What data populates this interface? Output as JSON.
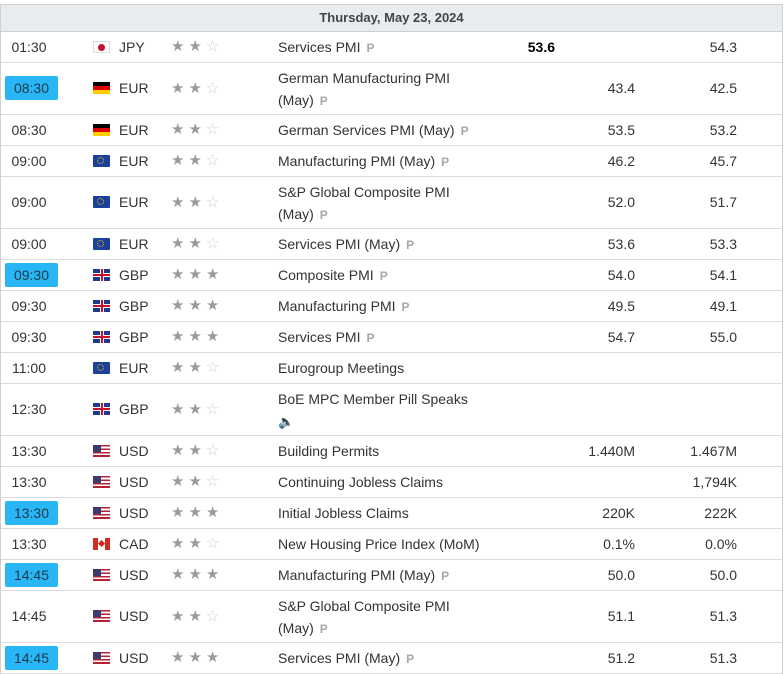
{
  "date_header": "Thursday, May 23, 2024",
  "stars_on_symbol": "★",
  "stars_off_symbol": "☆",
  "p_tag": "P",
  "rows": [
    {
      "time": "01:30",
      "hl": false,
      "flag": "jp",
      "currency": "JPY",
      "impact": 2,
      "event": "Services PMI",
      "p": true,
      "actual": "53.6",
      "forecast": "",
      "previous": "54.3",
      "tall": false
    },
    {
      "time": "08:30",
      "hl": true,
      "flag": "de",
      "currency": "EUR",
      "impact": 2,
      "event": "German Manufacturing PMI (May)",
      "p": true,
      "actual": "",
      "forecast": "43.4",
      "previous": "42.5",
      "tall": true
    },
    {
      "time": "08:30",
      "hl": false,
      "flag": "de",
      "currency": "EUR",
      "impact": 2,
      "event": "German Services PMI (May)",
      "p": true,
      "actual": "",
      "forecast": "53.5",
      "previous": "53.2",
      "tall": false
    },
    {
      "time": "09:00",
      "hl": false,
      "flag": "eu",
      "currency": "EUR",
      "impact": 2,
      "event": "Manufacturing PMI (May)",
      "p": true,
      "actual": "",
      "forecast": "46.2",
      "previous": "45.7",
      "tall": false
    },
    {
      "time": "09:00",
      "hl": false,
      "flag": "eu",
      "currency": "EUR",
      "impact": 2,
      "event": "S&P Global Composite PMI (May)",
      "p": true,
      "actual": "",
      "forecast": "52.0",
      "previous": "51.7",
      "tall": true
    },
    {
      "time": "09:00",
      "hl": false,
      "flag": "eu",
      "currency": "EUR",
      "impact": 2,
      "event": "Services PMI (May)",
      "p": true,
      "actual": "",
      "forecast": "53.6",
      "previous": "53.3",
      "tall": false
    },
    {
      "time": "09:30",
      "hl": true,
      "flag": "gb",
      "currency": "GBP",
      "impact": 3,
      "event": "Composite PMI",
      "p": true,
      "actual": "",
      "forecast": "54.0",
      "previous": "54.1",
      "tall": false
    },
    {
      "time": "09:30",
      "hl": false,
      "flag": "gb",
      "currency": "GBP",
      "impact": 3,
      "event": "Manufacturing PMI",
      "p": true,
      "actual": "",
      "forecast": "49.5",
      "previous": "49.1",
      "tall": false
    },
    {
      "time": "09:30",
      "hl": false,
      "flag": "gb",
      "currency": "GBP",
      "impact": 3,
      "event": "Services PMI",
      "p": true,
      "actual": "",
      "forecast": "54.7",
      "previous": "55.0",
      "tall": false
    },
    {
      "time": "11:00",
      "hl": false,
      "flag": "eu",
      "currency": "EUR",
      "impact": 2,
      "event": "Eurogroup Meetings",
      "p": false,
      "actual": "",
      "forecast": "",
      "previous": "",
      "tall": false
    },
    {
      "time": "12:30",
      "hl": false,
      "flag": "gb",
      "currency": "GBP",
      "impact": 2,
      "event": "BoE MPC Member Pill Speaks",
      "p": false,
      "speaker": true,
      "actual": "",
      "forecast": "",
      "previous": "",
      "tall": true
    },
    {
      "time": "13:30",
      "hl": false,
      "flag": "us",
      "currency": "USD",
      "impact": 2,
      "event": "Building Permits",
      "p": false,
      "actual": "",
      "forecast": "1.440M",
      "previous": "1.467M",
      "tall": false
    },
    {
      "time": "13:30",
      "hl": false,
      "flag": "us",
      "currency": "USD",
      "impact": 2,
      "event": "Continuing Jobless Claims",
      "p": false,
      "actual": "",
      "forecast": "",
      "previous": "1,794K",
      "tall": false
    },
    {
      "time": "13:30",
      "hl": true,
      "flag": "us",
      "currency": "USD",
      "impact": 3,
      "event": "Initial Jobless Claims",
      "p": false,
      "actual": "",
      "forecast": "220K",
      "previous": "222K",
      "tall": false
    },
    {
      "time": "13:30",
      "hl": false,
      "flag": "ca",
      "currency": "CAD",
      "impact": 2,
      "event": "New Housing Price Index (MoM)",
      "p": false,
      "actual": "",
      "forecast": "0.1%",
      "previous": "0.0%",
      "tall": false
    },
    {
      "time": "14:45",
      "hl": true,
      "flag": "us",
      "currency": "USD",
      "impact": 3,
      "event": "Manufacturing PMI (May)",
      "p": true,
      "actual": "",
      "forecast": "50.0",
      "previous": "50.0",
      "tall": false
    },
    {
      "time": "14:45",
      "hl": false,
      "flag": "us",
      "currency": "USD",
      "impact": 2,
      "event": "S&P Global Composite PMI (May)",
      "p": true,
      "actual": "",
      "forecast": "51.1",
      "previous": "51.3",
      "tall": true
    },
    {
      "time": "14:45",
      "hl": true,
      "flag": "us",
      "currency": "USD",
      "impact": 3,
      "event": "Services PMI (May)",
      "p": true,
      "actual": "",
      "forecast": "51.2",
      "previous": "51.3",
      "tall": false
    }
  ]
}
